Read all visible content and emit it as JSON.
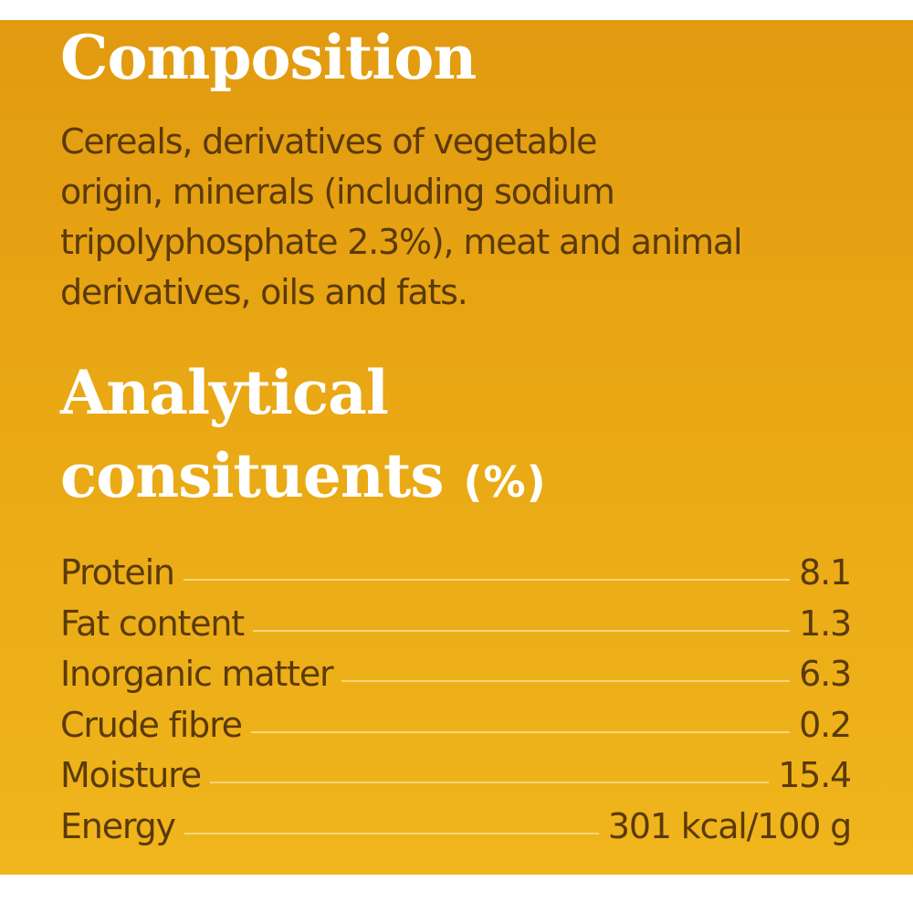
{
  "composition": {
    "title": "Composition",
    "text_lines": [
      "Cereals, derivatives of vegetable",
      "origin, minerals (including sodium",
      "tripolyphosphate 2.3%), meat and animal",
      "derivatives, oils and fats."
    ]
  },
  "analytical": {
    "title_lines": [
      "Analytical",
      "consituents"
    ],
    "unit": "(%)",
    "rows": [
      [
        "Protein",
        "8.1"
      ],
      [
        "Fat content",
        "1.3"
      ],
      [
        "Inorganic matter",
        "6.3"
      ],
      [
        "Crude fibre",
        "0.2"
      ],
      [
        "Moisture",
        "15.4"
      ],
      [
        "Energy",
        "301 kcal/100 g"
      ]
    ]
  }
}
